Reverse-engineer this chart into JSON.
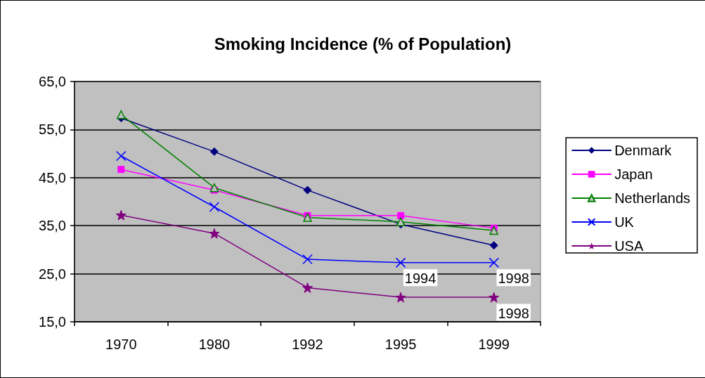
{
  "chart_data": {
    "type": "line",
    "title": "Smoking Incidence (% of Population)",
    "categories": [
      "1970",
      "1980",
      "1992",
      "1995",
      "1999"
    ],
    "series": [
      {
        "name": "Denmark",
        "color": "#000080",
        "marker": "diamond",
        "values": [
          57.4,
          50.4,
          42.4,
          35.3,
          30.9
        ]
      },
      {
        "name": "Japan",
        "color": "#ff00ff",
        "marker": "square",
        "values": [
          46.7,
          42.4,
          37.1,
          37.1,
          34.5
        ]
      },
      {
        "name": "Netherlands",
        "color": "#008000",
        "marker": "triangle",
        "values": [
          58.1,
          42.9,
          36.7,
          35.8,
          34.0
        ]
      },
      {
        "name": "UK",
        "color": "#0000ff",
        "marker": "cross",
        "values": [
          49.5,
          38.9,
          28.0,
          27.3,
          27.3
        ]
      },
      {
        "name": "USA",
        "color": "#800080",
        "marker": "star",
        "values": [
          37.2,
          33.4,
          22.1,
          20.1,
          20.1
        ]
      }
    ],
    "ylim": [
      15,
      65
    ],
    "yticks": [
      {
        "value": 15,
        "label": "15,0"
      },
      {
        "value": 25,
        "label": "25,0"
      },
      {
        "value": 35,
        "label": "35,0"
      },
      {
        "value": 45,
        "label": "45,0"
      },
      {
        "value": 55,
        "label": "55,0"
      },
      {
        "value": 65,
        "label": "65,0"
      }
    ],
    "grid": "y",
    "legend": "right",
    "annotations": [
      {
        "text": "1994",
        "x": "1995",
        "y": 27.3
      },
      {
        "text": "1998",
        "x": "1999",
        "y": 27.3
      },
      {
        "text": "1998",
        "x": "1999",
        "y": 20.1
      }
    ]
  }
}
